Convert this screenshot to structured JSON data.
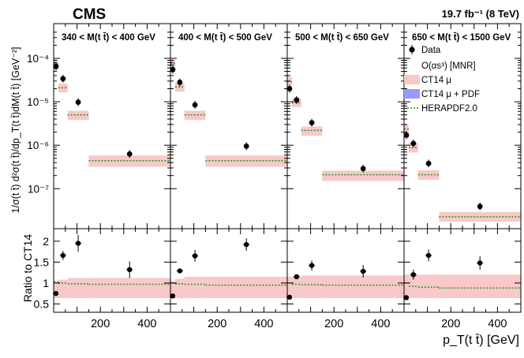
{
  "experiment_label": "CMS",
  "lumi_label": "19.7 fb⁻¹ (8 TeV)",
  "top_ylabel": "1/σ(t t̄) d²σ(t t̄)/dp_T(t t̄)dM(t t̄) [GeV⁻²]",
  "bottom_ylabel": "Ratio to CT14",
  "xlabel": "p_T(t t̄) [GeV]",
  "legend": [
    {
      "label": "Data",
      "kind": "marker"
    },
    {
      "label": "O(αs³) [MNR]",
      "kind": "none"
    },
    {
      "label": "CT14 μ",
      "kind": "band",
      "color": "#f9c8c8"
    },
    {
      "label": "CT14 μ + PDF",
      "kind": "band",
      "color": "#9999ff"
    },
    {
      "label": "HERAPDF2.0",
      "kind": "dotted",
      "color": "#2e9a2e"
    }
  ],
  "chart_data": {
    "type": "scatter",
    "title": "CMS 19.7 fb⁻¹ (8 TeV)",
    "xlabel": "p_T(t t̄) [GeV]",
    "xlim": [
      0,
      500
    ],
    "xticks": [
      200,
      400
    ],
    "top_ylabel": "1/σ(t t̄) d²σ(t t̄)/dp_T(t t̄)dM(t t̄) [GeV⁻²]",
    "top_yscale": "log",
    "top_ylim": [
      1.2e-08,
      0.00045
    ],
    "top_yticks": [
      1e-07,
      1e-06,
      1e-05,
      0.0001
    ],
    "top_ytick_labels": [
      "10⁻⁷",
      "10⁻⁶",
      "10⁻⁵",
      "10⁻⁴"
    ],
    "ratio_ylabel": "Ratio to CT14",
    "ratio_ylim": [
      0.3,
      2.3
    ],
    "ratio_yticks": [
      0.5,
      1,
      1.5,
      2
    ],
    "panels": [
      {
        "label": "340 < M(t t̄) < 400 GeV",
        "bins": [
          {
            "x": [
              0,
              20
            ],
            "data": 6.5e-05,
            "band_lo": 6.3e-05,
            "band_hi": 9.5e-05,
            "hera": 7.5e-05,
            "ratio": 0.75,
            "ratio_err": 0.04,
            "ratio_band_lo": 0.64,
            "ratio_band_hi": 1.02,
            "ratio_hera": 1.03
          },
          {
            "x": [
              20,
              60
            ],
            "data": 3.4e-05,
            "band_lo": 1.65e-05,
            "band_hi": 2.6e-05,
            "hera": 2.1e-05,
            "ratio": 1.66,
            "ratio_err": 0.11,
            "ratio_band_lo": 0.64,
            "ratio_band_hi": 1.08,
            "ratio_hera": 1.0
          },
          {
            "x": [
              60,
              150
            ],
            "data": 9.8e-06,
            "band_lo": 3.8e-06,
            "band_hi": 6.2e-06,
            "hera": 5e-06,
            "ratio": 1.95,
            "ratio_err": 0.2,
            "ratio_band_lo": 0.64,
            "ratio_band_hi": 1.12,
            "ratio_hera": 0.98
          },
          {
            "x": [
              150,
              500
            ],
            "data": 6.3e-07,
            "band_lo": 3.2e-07,
            "band_hi": 5.8e-07,
            "hera": 4.4e-07,
            "ratio": 1.32,
            "ratio_err": 0.2,
            "ratio_band_lo": 0.64,
            "ratio_band_hi": 1.12,
            "ratio_hera": 0.97
          }
        ]
      },
      {
        "label": "400 < M(t t̄) < 500 GeV",
        "bins": [
          {
            "x": [
              0,
              20
            ],
            "data": 5.5e-05,
            "band_lo": 6.3e-05,
            "band_hi": 9.5e-05,
            "hera": 7.5e-05,
            "ratio": 0.69,
            "ratio_err": 0.04,
            "ratio_band_lo": 0.64,
            "ratio_band_hi": 1.05,
            "ratio_hera": 1.0
          },
          {
            "x": [
              20,
              60
            ],
            "data": 2.8e-05,
            "band_lo": 1.7e-05,
            "band_hi": 2.7e-05,
            "hera": 2.2e-05,
            "ratio": 1.29,
            "ratio_err": 0.05,
            "ratio_band_lo": 0.64,
            "ratio_band_hi": 1.1,
            "ratio_hera": 0.98
          },
          {
            "x": [
              60,
              150
            ],
            "data": 8.5e-06,
            "band_lo": 3.8e-06,
            "band_hi": 6.2e-06,
            "hera": 5e-06,
            "ratio": 1.65,
            "ratio_err": 0.14,
            "ratio_band_lo": 0.64,
            "ratio_band_hi": 1.15,
            "ratio_hera": 0.97
          },
          {
            "x": [
              150,
              500
            ],
            "data": 9.5e-07,
            "band_lo": 3.2e-07,
            "band_hi": 5.8e-07,
            "hera": 4.4e-07,
            "ratio": 1.92,
            "ratio_err": 0.15,
            "ratio_band_lo": 0.64,
            "ratio_band_hi": 1.15,
            "ratio_hera": 0.95
          }
        ]
      },
      {
        "label": "500 < M(t t̄) < 650 GeV",
        "bins": [
          {
            "x": [
              0,
              20
            ],
            "data": 2e-05,
            "band_lo": 2.3e-05,
            "band_hi": 3.7e-05,
            "hera": 2.9e-05,
            "ratio": 0.66,
            "ratio_err": 0.04,
            "ratio_band_lo": 0.64,
            "ratio_band_hi": 1.15,
            "ratio_hera": 1.0
          },
          {
            "x": [
              20,
              60
            ],
            "data": 1.1e-05,
            "band_lo": 7.5e-06,
            "band_hi": 1.2e-05,
            "hera": 9.5e-06,
            "ratio": 1.15,
            "ratio_err": 0.05,
            "ratio_band_lo": 0.64,
            "ratio_band_hi": 1.15,
            "ratio_hera": 0.97
          },
          {
            "x": [
              60,
              150
            ],
            "data": 3.3e-06,
            "band_lo": 1.65e-06,
            "band_hi": 2.7e-06,
            "hera": 2.2e-06,
            "ratio": 1.42,
            "ratio_err": 0.12,
            "ratio_band_lo": 0.64,
            "ratio_band_hi": 1.18,
            "ratio_hera": 0.96
          },
          {
            "x": [
              150,
              500
            ],
            "data": 2.9e-07,
            "band_lo": 1.5e-07,
            "band_hi": 2.6e-07,
            "hera": 2.1e-07,
            "ratio": 1.28,
            "ratio_err": 0.15,
            "ratio_band_lo": 0.64,
            "ratio_band_hi": 1.18,
            "ratio_hera": 0.95
          }
        ]
      },
      {
        "label": "650 < M(t t̄) < 1500 GeV",
        "bins": [
          {
            "x": [
              0,
              20
            ],
            "data": 1.7e-06,
            "band_lo": 1.85e-06,
            "band_hi": 3e-06,
            "hera": 2.35e-06,
            "ratio": 0.65,
            "ratio_err": 0.04,
            "ratio_band_lo": 0.64,
            "ratio_band_hi": 1.2,
            "ratio_hera": 1.0
          },
          {
            "x": [
              20,
              60
            ],
            "data": 1.1e-06,
            "band_lo": 6.8e-07,
            "band_hi": 1.15e-06,
            "hera": 8.8e-07,
            "ratio": 1.2,
            "ratio_err": 0.12,
            "ratio_band_lo": 0.64,
            "ratio_band_hi": 1.2,
            "ratio_hera": 0.92
          },
          {
            "x": [
              60,
              150
            ],
            "data": 3.8e-07,
            "band_lo": 1.6e-07,
            "band_hi": 2.65e-07,
            "hera": 2.1e-07,
            "ratio": 1.66,
            "ratio_err": 0.14,
            "ratio_band_lo": 0.64,
            "ratio_band_hi": 1.2,
            "ratio_hera": 0.9
          },
          {
            "x": [
              150,
              500
            ],
            "data": 3.9e-08,
            "band_lo": 1.75e-08,
            "band_hi": 2.9e-08,
            "hera": 2.25e-08,
            "ratio": 1.48,
            "ratio_err": 0.16,
            "ratio_band_lo": 0.64,
            "ratio_band_hi": 1.2,
            "ratio_hera": 0.88
          }
        ]
      }
    ]
  }
}
